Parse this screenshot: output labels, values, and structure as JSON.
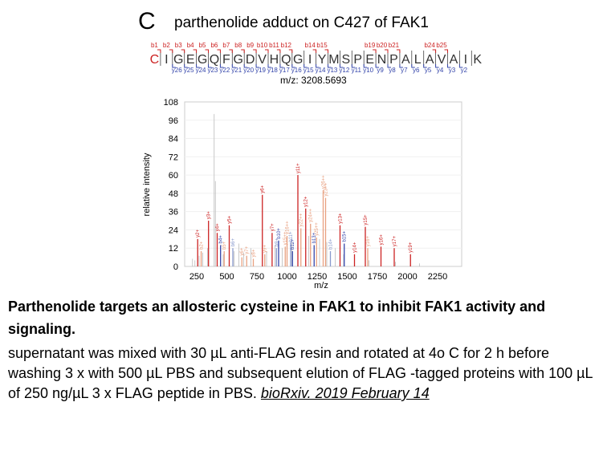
{
  "panel_letter": "C",
  "panel_title": "parthenolide adduct on C427 of FAK1",
  "peptide": {
    "residues": [
      "C",
      "I",
      "G",
      "E",
      "G",
      "Q",
      "F",
      "G",
      "D",
      "V",
      "H",
      "Q",
      "G",
      "I",
      "Y",
      "M",
      "S",
      "P",
      "E",
      "N",
      "P",
      "A",
      "L",
      "A",
      "V",
      "A",
      "I",
      "K"
    ],
    "b_ions": [
      "b1",
      "b2",
      "b3",
      "b4",
      "b5",
      "b6",
      "b7",
      "b8",
      "b9",
      "b10",
      "b11",
      "b12",
      "b14",
      "b15",
      "b19",
      "b20",
      "b21",
      "b24",
      "b25"
    ],
    "b_positions": [
      1,
      2,
      3,
      4,
      5,
      6,
      7,
      8,
      9,
      10,
      11,
      12,
      14,
      15,
      19,
      20,
      21,
      24,
      25
    ],
    "y_ions": [
      "y26",
      "y25",
      "y24",
      "y23",
      "y22",
      "y21",
      "y20",
      "y19",
      "y18",
      "y17",
      "y16",
      "y15",
      "y14",
      "y13",
      "y12",
      "y11",
      "y10",
      "y9",
      "y8",
      "y7",
      "y6",
      "y5",
      "y4",
      "y3",
      "y2"
    ],
    "y_positions": [
      2,
      3,
      4,
      5,
      6,
      7,
      8,
      9,
      10,
      11,
      12,
      13,
      14,
      15,
      16,
      17,
      18,
      19,
      20,
      21,
      22,
      23,
      24,
      25,
      26
    ],
    "mz_label": "m/z: 3208.5693",
    "residue_color": "#333333",
    "modified_color": "#cc2222",
    "b_color": "#cc2222",
    "y_color": "#3344aa"
  },
  "chart_data": {
    "type": "bar",
    "xlabel": "m/z",
    "ylabel": "relative intensity",
    "xlim": [
      150,
      2450
    ],
    "ylim": [
      0,
      108
    ],
    "xticks": [
      250,
      500,
      750,
      1000,
      1250,
      1500,
      1750,
      2000,
      2250
    ],
    "yticks": [
      0,
      12,
      24,
      36,
      48,
      60,
      72,
      84,
      96,
      108
    ],
    "colors": {
      "b": "#cc2222",
      "y": "#3344aa",
      "b_light": "#e8a080",
      "y_light": "#8899cc",
      "unassigned": "#bbbbbb"
    },
    "peaks": [
      {
        "x": 395,
        "y": 100,
        "c": "unassigned"
      },
      {
        "x": 405,
        "y": 56,
        "c": "unassigned"
      },
      {
        "x": 215,
        "y": 5,
        "c": "unassigned"
      },
      {
        "x": 235,
        "y": 4,
        "c": "unassigned"
      },
      {
        "x": 270,
        "y": 7,
        "c": "unassigned"
      },
      {
        "x": 300,
        "y": 9,
        "c": "unassigned"
      },
      {
        "x": 340,
        "y": 12,
        "c": "unassigned"
      },
      {
        "x": 470,
        "y": 8,
        "c": "unassigned"
      },
      {
        "x": 560,
        "y": 10,
        "c": "unassigned"
      },
      {
        "x": 600,
        "y": 15,
        "c": "unassigned"
      },
      {
        "x": 640,
        "y": 9,
        "c": "unassigned"
      },
      {
        "x": 700,
        "y": 12,
        "c": "unassigned"
      },
      {
        "x": 830,
        "y": 10,
        "c": "unassigned"
      },
      {
        "x": 900,
        "y": 14,
        "c": "unassigned"
      },
      {
        "x": 960,
        "y": 12,
        "c": "unassigned"
      },
      {
        "x": 1040,
        "y": 16,
        "c": "unassigned"
      },
      {
        "x": 1180,
        "y": 20,
        "c": "unassigned"
      },
      {
        "x": 1270,
        "y": 18,
        "c": "unassigned"
      },
      {
        "x": 1330,
        "y": 16,
        "c": "unassigned"
      },
      {
        "x": 1400,
        "y": 12,
        "c": "unassigned"
      },
      {
        "x": 1470,
        "y": 8,
        "c": "unassigned"
      },
      {
        "x": 1560,
        "y": 6,
        "c": "unassigned"
      },
      {
        "x": 1680,
        "y": 4,
        "c": "unassigned"
      },
      {
        "x": 1900,
        "y": 3,
        "c": "unassigned"
      },
      {
        "x": 2100,
        "y": 2,
        "c": "unassigned"
      },
      {
        "x": 258,
        "y": 18,
        "c": "b",
        "label": "y2+"
      },
      {
        "x": 348,
        "y": 30,
        "c": "b",
        "label": "y3+"
      },
      {
        "x": 287,
        "y": 10,
        "c": "b_light",
        "label": "b2+"
      },
      {
        "x": 420,
        "y": 22,
        "c": "b",
        "label": "y4+"
      },
      {
        "x": 448,
        "y": 14,
        "c": "y",
        "label": "b4+"
      },
      {
        "x": 478,
        "y": 10,
        "c": "b_light",
        "label": "b5+"
      },
      {
        "x": 520,
        "y": 27,
        "c": "b",
        "label": "y5+"
      },
      {
        "x": 550,
        "y": 12,
        "c": "y_light",
        "label": "b6+"
      },
      {
        "x": 625,
        "y": 6,
        "c": "b_light",
        "label": "y6+"
      },
      {
        "x": 665,
        "y": 7,
        "c": "b_light",
        "label": "y7+"
      },
      {
        "x": 720,
        "y": 5,
        "c": "b_light",
        "label": "y8+"
      },
      {
        "x": 795,
        "y": 47,
        "c": "b",
        "label": "y6+"
      },
      {
        "x": 815,
        "y": 8,
        "c": "b_light",
        "label": "y9+"
      },
      {
        "x": 876,
        "y": 22,
        "c": "b",
        "label": "y7+"
      },
      {
        "x": 912,
        "y": 12,
        "c": "y_light",
        "label": "b9+"
      },
      {
        "x": 930,
        "y": 17,
        "c": "y",
        "label": "b10+"
      },
      {
        "x": 985,
        "y": 13,
        "c": "b_light",
        "label": "y15++"
      },
      {
        "x": 1000,
        "y": 20,
        "c": "b_light",
        "label": "y16++"
      },
      {
        "x": 1030,
        "y": 15,
        "c": "y_light",
        "label": "b11+"
      },
      {
        "x": 1045,
        "y": 10,
        "c": "y",
        "label": "b12+"
      },
      {
        "x": 1090,
        "y": 60,
        "c": "b",
        "label": "y11+"
      },
      {
        "x": 1115,
        "y": 25,
        "c": "b_light",
        "label": "y22++"
      },
      {
        "x": 1155,
        "y": 38,
        "c": "b",
        "label": "y12+"
      },
      {
        "x": 1195,
        "y": 28,
        "c": "b_light",
        "label": "y24++"
      },
      {
        "x": 1225,
        "y": 14,
        "c": "y",
        "label": "b13+"
      },
      {
        "x": 1245,
        "y": 19,
        "c": "b_light",
        "label": "y25++"
      },
      {
        "x": 1300,
        "y": 50,
        "c": "b_light",
        "label": "y26++"
      },
      {
        "x": 1320,
        "y": 45,
        "c": "b_light",
        "label": "y23++"
      },
      {
        "x": 1360,
        "y": 10,
        "c": "y_light",
        "label": "b14+"
      },
      {
        "x": 1440,
        "y": 27,
        "c": "b",
        "label": "y13+"
      },
      {
        "x": 1475,
        "y": 15,
        "c": "y",
        "label": "b15+"
      },
      {
        "x": 1560,
        "y": 8,
        "c": "b",
        "label": "y14+"
      },
      {
        "x": 1650,
        "y": 26,
        "c": "b",
        "label": "y15+"
      },
      {
        "x": 1670,
        "y": 12,
        "c": "b_light",
        "label": "y16+"
      },
      {
        "x": 1780,
        "y": 13,
        "c": "b",
        "label": "y16+"
      },
      {
        "x": 1890,
        "y": 12,
        "c": "b",
        "label": "y17+"
      },
      {
        "x": 2025,
        "y": 8,
        "c": "b",
        "label": "y19+"
      }
    ]
  },
  "caption": {
    "title": "Parthenolide targets an allosteric cysteine in FAK1 to inhibit FAK1 activity and signaling.",
    "body": "supernatant was mixed with 30 µL anti-FLAG resin and rotated at 4o C for 2 h before washing 3 x with 500 µL PBS and subsequent elution of FLAG -tagged proteins with 100 µL of 250 ng/µL 3 x FLAG peptide in PBS.",
    "citation": "bioRxiv. 2019 February 14"
  }
}
